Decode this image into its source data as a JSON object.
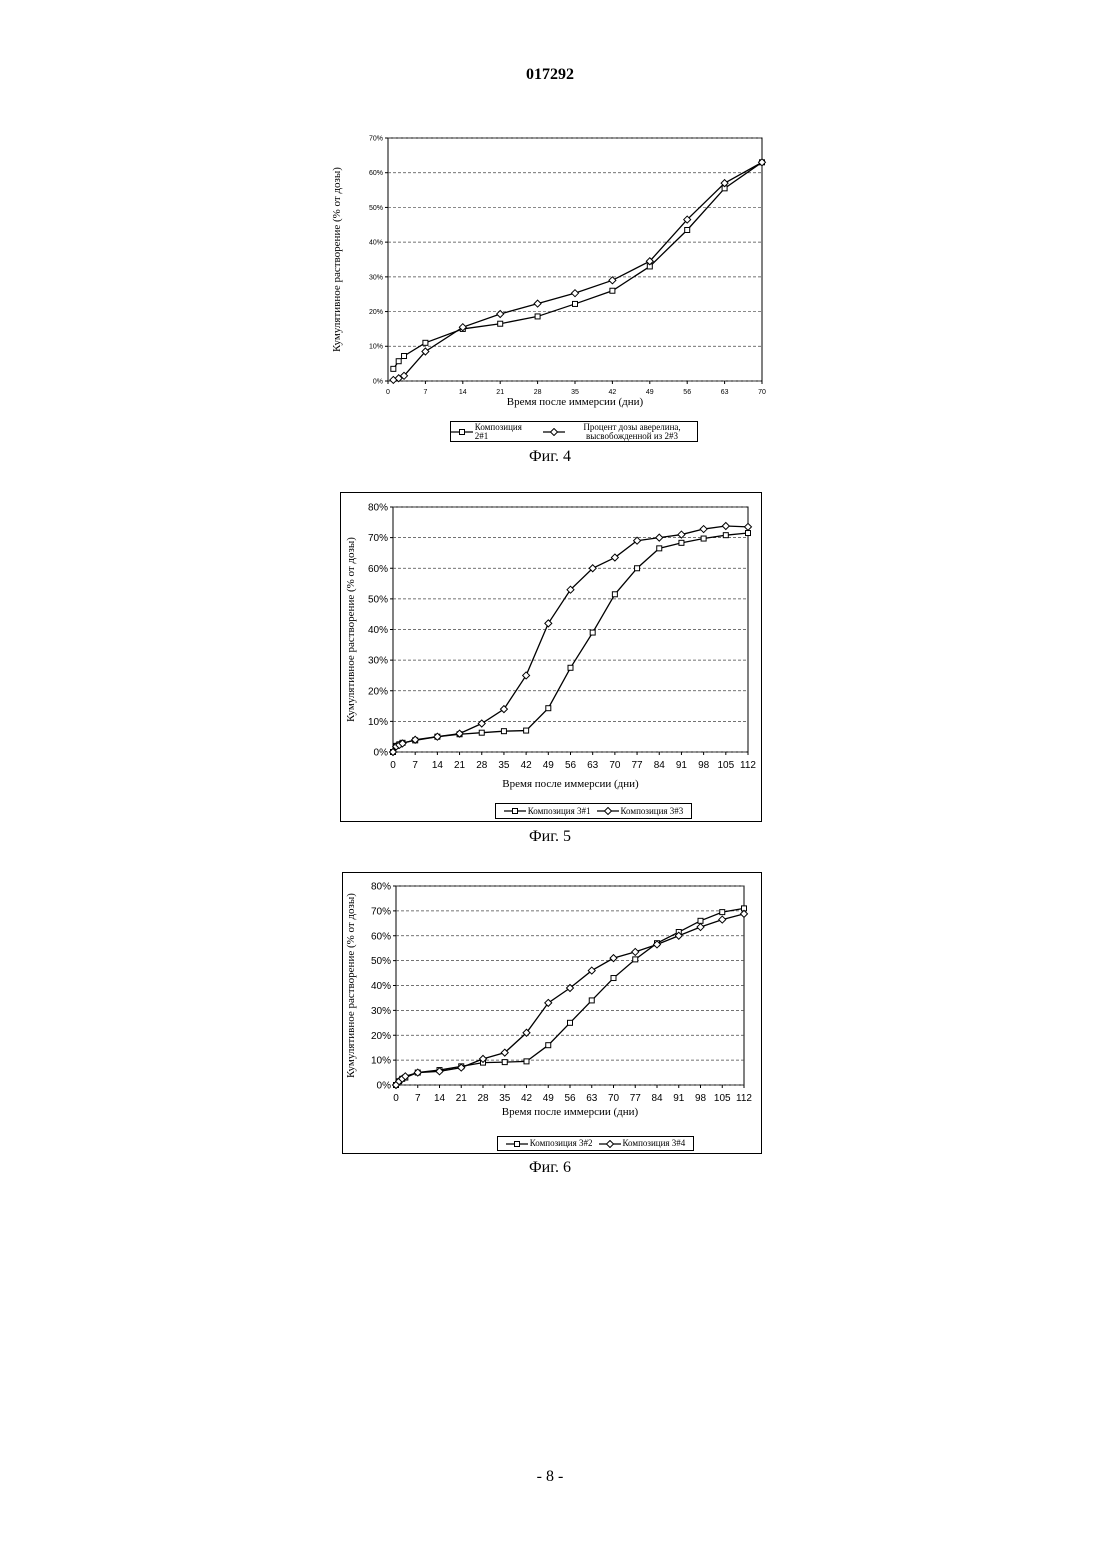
{
  "header": "017292",
  "page_number": "- 8 -",
  "chart_data": [
    {
      "type": "line",
      "caption": "Фиг. 4",
      "y_label": "Кумулятивное растворение (% от дозы)",
      "x_label": "Время после иммерсии (дни)",
      "xlim": [
        0,
        70
      ],
      "xticks": [
        0,
        7,
        14,
        21,
        28,
        35,
        42,
        49,
        56,
        63,
        70
      ],
      "ylim": [
        0,
        70
      ],
      "yticks": [
        {
          "value": 0,
          "label": "0%"
        },
        {
          "value": 10,
          "label": "10%"
        },
        {
          "value": 20,
          "label": "20%"
        },
        {
          "value": 30,
          "label": "30%"
        },
        {
          "value": 40,
          "label": "40%"
        },
        {
          "value": 50,
          "label": "50%"
        },
        {
          "value": 60,
          "label": "60%"
        },
        {
          "value": 70,
          "label": "70%"
        }
      ],
      "grid": true,
      "series": [
        {
          "name": "Композиция 2#1",
          "color": "#000000",
          "marker": "square",
          "x": [
            1,
            2,
            3,
            7,
            14,
            21,
            28,
            35,
            42,
            49,
            56,
            63,
            70
          ],
          "values": [
            3.5,
            5.7,
            7.2,
            11,
            15,
            16.5,
            18.6,
            22.2,
            26,
            33,
            43.5,
            55.5,
            63
          ]
        },
        {
          "name": "Процент дозы аверелина, высвобожденной из 2#3",
          "color": "#000000",
          "marker": "diamond",
          "x": [
            1,
            2,
            3,
            7,
            14,
            21,
            28,
            35,
            42,
            49,
            56,
            63,
            70
          ],
          "values": [
            0.3,
            0.8,
            1.5,
            8.5,
            15.5,
            19.3,
            22.3,
            25.3,
            29,
            34.5,
            46.5,
            57,
            63
          ]
        }
      ]
    },
    {
      "type": "line",
      "caption": "Фиг. 5",
      "y_label": "Кумулятивное растворение (% от дозы)",
      "x_label": "Время после иммерсии (дни)",
      "xlim": [
        0,
        112
      ],
      "xticks": [
        0,
        7,
        14,
        21,
        28,
        35,
        42,
        49,
        56,
        63,
        70,
        77,
        84,
        91,
        98,
        105,
        112
      ],
      "ylim": [
        0,
        80
      ],
      "yticks": [
        {
          "value": 0,
          "label": "0%"
        },
        {
          "value": 10,
          "label": "10%"
        },
        {
          "value": 20,
          "label": "20%"
        },
        {
          "value": 30,
          "label": "30%"
        },
        {
          "value": 40,
          "label": "40%"
        },
        {
          "value": 50,
          "label": "50%"
        },
        {
          "value": 60,
          "label": "60%"
        },
        {
          "value": 70,
          "label": "70%"
        },
        {
          "value": 80,
          "label": "80%"
        }
      ],
      "grid": true,
      "series": [
        {
          "name": "Композиция 3#1",
          "color": "#000000",
          "marker": "square",
          "x": [
            0,
            1,
            2,
            3,
            7,
            14,
            21,
            28,
            35,
            42,
            49,
            56,
            63,
            70,
            77,
            84,
            91,
            98,
            105,
            112
          ],
          "values": [
            0,
            2,
            2.5,
            3,
            3.8,
            5,
            5.8,
            6.3,
            6.8,
            7,
            14.3,
            27.5,
            39,
            51.5,
            60,
            66.5,
            68.3,
            69.7,
            70.8,
            71.5
          ]
        },
        {
          "name": "Композиция 3#3",
          "color": "#000000",
          "marker": "diamond",
          "x": [
            0,
            1,
            2,
            3,
            7,
            14,
            21,
            28,
            35,
            42,
            49,
            56,
            63,
            70,
            77,
            84,
            91,
            98,
            105,
            112
          ],
          "values": [
            0,
            1.8,
            2.3,
            2.8,
            4,
            5,
            6,
            9.3,
            14,
            25,
            42,
            53,
            60,
            63.5,
            69,
            70,
            71,
            72.8,
            73.8,
            73.5
          ]
        }
      ]
    },
    {
      "type": "line",
      "caption": "Фиг. 6",
      "y_label": "Кумулятивное растворение (% от дозы)",
      "x_label": "Время после иммерсии (дни)",
      "xlim": [
        0,
        112
      ],
      "xticks": [
        0,
        7,
        14,
        21,
        28,
        35,
        42,
        49,
        56,
        63,
        70,
        77,
        84,
        91,
        98,
        105,
        112
      ],
      "ylim": [
        0,
        80
      ],
      "yticks": [
        {
          "value": 0,
          "label": "0%"
        },
        {
          "value": 10,
          "label": "10%"
        },
        {
          "value": 20,
          "label": "20%"
        },
        {
          "value": 30,
          "label": "30%"
        },
        {
          "value": 40,
          "label": "40%"
        },
        {
          "value": 50,
          "label": "50%"
        },
        {
          "value": 60,
          "label": "60%"
        },
        {
          "value": 70,
          "label": "70%"
        },
        {
          "value": 80,
          "label": "80%"
        }
      ],
      "grid": true,
      "series": [
        {
          "name": "Композиция 3#2",
          "color": "#000000",
          "marker": "square",
          "x": [
            0,
            1,
            2,
            3,
            7,
            14,
            21,
            28,
            35,
            42,
            49,
            56,
            63,
            70,
            77,
            84,
            91,
            98,
            105,
            112
          ],
          "values": [
            0,
            1.5,
            2.5,
            3,
            5,
            6,
            7.5,
            9,
            9.2,
            9.5,
            16,
            25,
            34,
            43,
            50.5,
            57,
            61.5,
            66,
            69.5,
            71
          ]
        },
        {
          "name": "Композиция 3#4",
          "color": "#000000",
          "marker": "diamond",
          "x": [
            0,
            1,
            2,
            3,
            7,
            14,
            21,
            28,
            35,
            42,
            49,
            56,
            63,
            70,
            77,
            84,
            91,
            98,
            105,
            112
          ],
          "values": [
            0,
            1.5,
            2.5,
            3.5,
            5,
            5.5,
            7,
            10.5,
            13,
            21,
            33,
            39,
            46,
            51,
            53.5,
            56.5,
            60,
            63.5,
            66.5,
            68.8
          ]
        }
      ]
    }
  ]
}
